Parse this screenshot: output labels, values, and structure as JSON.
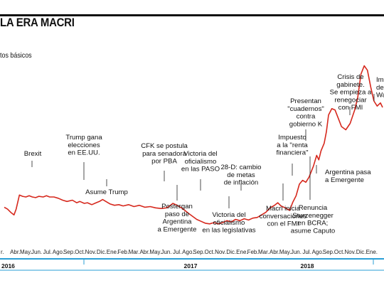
{
  "header": {
    "title": "LA ERA MACRI",
    "subtitle": "tos básicos"
  },
  "chart_data": {
    "type": "line",
    "xlabel": "",
    "ylabel": "",
    "grid": false,
    "line_color": "#d6281d",
    "x_ticks": [
      "r.",
      "Abr.",
      "May.",
      "Jun.",
      "Jul.",
      "Ago.",
      "Sep.",
      "Oct.",
      "Nov.",
      "Dic.",
      "Ene.",
      "Feb.",
      "Mar.",
      "Abr.",
      "May.",
      "Jun.",
      "Jul.",
      "Ago.",
      "Sep.",
      "Oct.",
      "Nov.",
      "Dic.",
      "Ene.",
      "Feb.",
      "Mar.",
      "Abr.",
      "May.",
      "Jun.",
      "Jul.",
      "Ago.",
      "Sep.",
      "Oct.",
      "Nov.",
      "Dic.",
      "Ene."
    ],
    "years": [
      "2016",
      "2017",
      "2018"
    ],
    "series": [
      {
        "values": [
          [
            0,
            0.34
          ],
          [
            0.3,
            0.31
          ],
          [
            0.6,
            0.26
          ],
          [
            0.9,
            0.22
          ],
          [
            1.1,
            0.31
          ],
          [
            1.4,
            0.53
          ],
          [
            1.7,
            0.51
          ],
          [
            2.0,
            0.5
          ],
          [
            2.3,
            0.52
          ],
          [
            2.6,
            0.5
          ],
          [
            2.9,
            0.49
          ],
          [
            3.2,
            0.51
          ],
          [
            3.6,
            0.5
          ],
          [
            3.9,
            0.52
          ],
          [
            4.2,
            0.5
          ],
          [
            4.6,
            0.5
          ],
          [
            5.0,
            0.48
          ],
          [
            5.4,
            0.45
          ],
          [
            5.8,
            0.43
          ],
          [
            6.3,
            0.45
          ],
          [
            6.7,
            0.41
          ],
          [
            7.0,
            0.43
          ],
          [
            7.4,
            0.4
          ],
          [
            7.7,
            0.41
          ],
          [
            8.1,
            0.38
          ],
          [
            8.5,
            0.41
          ],
          [
            8.8,
            0.43
          ],
          [
            9.1,
            0.46
          ],
          [
            9.4,
            0.43
          ],
          [
            9.8,
            0.39
          ],
          [
            10.2,
            0.37
          ],
          [
            10.6,
            0.38
          ],
          [
            11.0,
            0.36
          ],
          [
            11.5,
            0.38
          ],
          [
            12.0,
            0.35
          ],
          [
            12.5,
            0.37
          ],
          [
            13.0,
            0.34
          ],
          [
            13.5,
            0.35
          ],
          [
            14.0,
            0.33
          ],
          [
            14.5,
            0.32
          ],
          [
            15.0,
            0.33
          ],
          [
            15.3,
            0.36
          ],
          [
            15.6,
            0.4
          ],
          [
            16.0,
            0.37
          ],
          [
            16.5,
            0.32
          ],
          [
            17.0,
            0.25
          ],
          [
            17.4,
            0.2
          ],
          [
            17.8,
            0.15
          ],
          [
            18.2,
            0.12
          ],
          [
            18.6,
            0.09
          ],
          [
            19.0,
            0.08
          ],
          [
            19.4,
            0.1
          ],
          [
            19.8,
            0.08
          ],
          [
            20.2,
            0.1
          ],
          [
            20.6,
            0.13
          ],
          [
            21.0,
            0.11
          ],
          [
            21.4,
            0.15
          ],
          [
            21.8,
            0.13
          ],
          [
            22.2,
            0.16
          ],
          [
            22.6,
            0.14
          ],
          [
            23.0,
            0.17
          ],
          [
            23.4,
            0.18
          ],
          [
            23.8,
            0.22
          ],
          [
            24.2,
            0.26
          ],
          [
            24.6,
            0.33
          ],
          [
            25.0,
            0.37
          ],
          [
            25.3,
            0.41
          ],
          [
            25.6,
            0.36
          ],
          [
            26.0,
            0.33
          ],
          [
            26.4,
            0.29
          ],
          [
            26.7,
            0.42
          ],
          [
            27.0,
            0.52
          ],
          [
            27.3,
            0.7
          ],
          [
            27.6,
            0.76
          ],
          [
            27.9,
            0.73
          ],
          [
            28.2,
            0.81
          ],
          [
            28.6,
            0.98
          ],
          [
            28.9,
            1.15
          ],
          [
            29.1,
            1.08
          ],
          [
            29.3,
            1.22
          ],
          [
            29.6,
            1.34
          ],
          [
            29.8,
            1.52
          ],
          [
            30.0,
            1.78
          ],
          [
            30.3,
            1.88
          ],
          [
            30.6,
            1.86
          ],
          [
            30.9,
            1.73
          ],
          [
            31.2,
            1.6
          ],
          [
            31.6,
            1.55
          ],
          [
            32.0,
            1.65
          ],
          [
            32.4,
            1.85
          ],
          [
            32.7,
            2.05
          ],
          [
            33.0,
            2.42
          ],
          [
            33.3,
            2.55
          ],
          [
            33.6,
            2.48
          ],
          [
            33.9,
            2.22
          ],
          [
            34.2,
            2.0
          ],
          [
            34.5,
            1.92
          ],
          [
            34.8,
            1.97
          ],
          [
            35.0,
            1.9
          ]
        ]
      }
    ],
    "annotations": [
      {
        "lines": [
          "Brexit"
        ]
      },
      {
        "lines": [
          "Trump gana",
          "elecciones",
          "en EE.UU."
        ]
      },
      {
        "lines": [
          "Asume Trump"
        ]
      },
      {
        "lines": [
          "CFK se postula",
          "para senadora",
          "por PBA"
        ]
      },
      {
        "lines": [
          "Postergan",
          "paso de",
          "Argentina",
          "a Emergente"
        ]
      },
      {
        "lines": [
          "Victoria del",
          "oficialismo",
          "en las PASO"
        ]
      },
      {
        "lines": [
          "Victoria del",
          "oficialismo",
          "en las legislativas"
        ]
      },
      {
        "lines": [
          "28-D: cambio",
          "de metas",
          "de inflación"
        ]
      },
      {
        "lines": [
          "Impuesto",
          "a la \"renta",
          "financiera\""
        ]
      },
      {
        "lines": [
          "Macri inicia",
          "conversaciones",
          "con el FMI"
        ]
      },
      {
        "lines": [
          "Presentan",
          "\"cuadernos\"",
          "contra",
          "gobierno K"
        ]
      },
      {
        "lines": [
          "Renuncia",
          "Sturzenegger",
          "en BCRA;",
          "asume Caputo"
        ]
      },
      {
        "lines": [
          "Argentina pasa",
          "a Emergente"
        ]
      },
      {
        "lines": [
          "Crisis de",
          "gabinete.",
          "Se empieza a",
          "renegociar",
          "con FMI"
        ]
      },
      {
        "lines": [
          "Imp",
          "de",
          "Wa"
        ]
      }
    ]
  }
}
